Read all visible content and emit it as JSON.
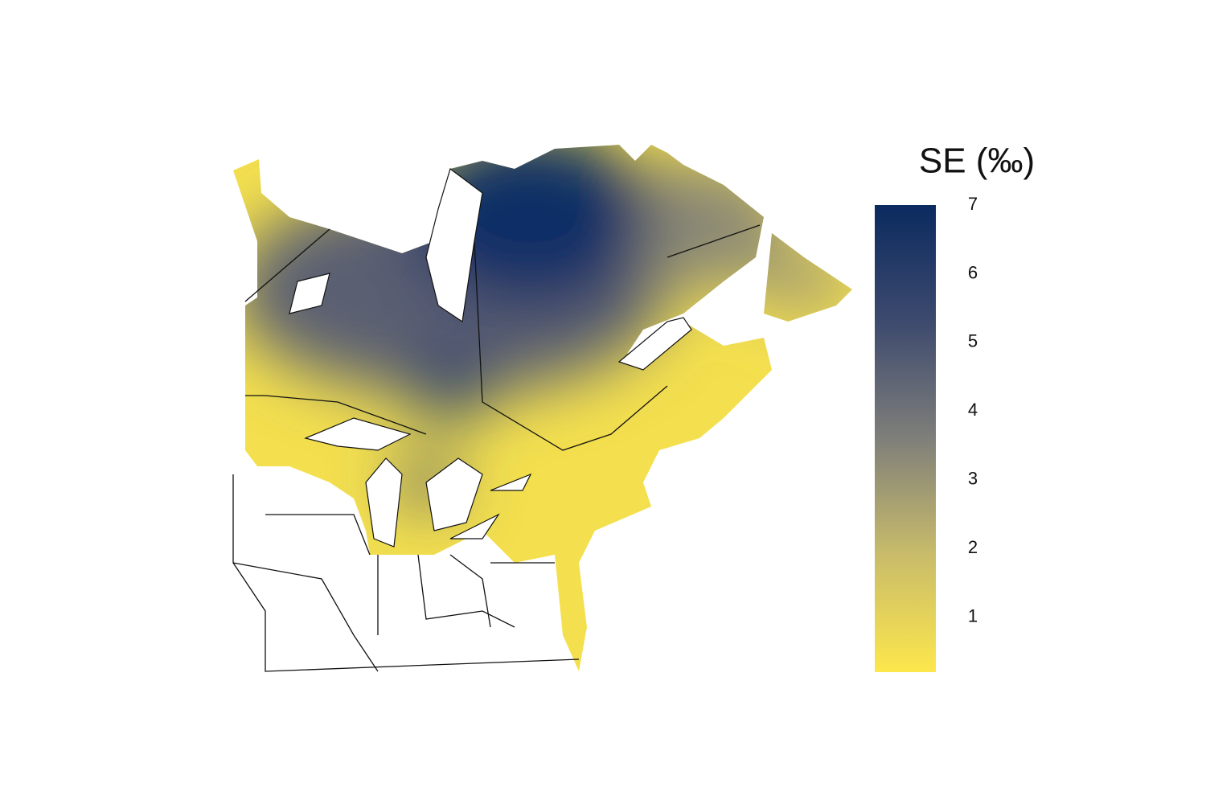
{
  "legend": {
    "title": "SE (‰)",
    "ticks": [
      1,
      2,
      3,
      4,
      5,
      6,
      7
    ],
    "range": [
      0.2,
      7
    ],
    "colors": [
      "#fde74c",
      "#c9bc6a",
      "#7f7f7a",
      "#3d4a6e",
      "#0b2a5f"
    ]
  }
}
